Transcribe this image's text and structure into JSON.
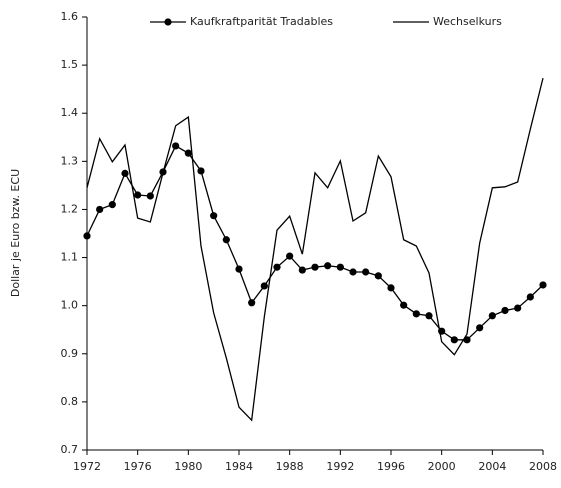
{
  "chart_data": {
    "type": "line",
    "ylabel": "Dollar je Euro bzw. ECU",
    "x": [
      1972,
      1973,
      1974,
      1975,
      1976,
      1977,
      1978,
      1979,
      1980,
      1981,
      1982,
      1983,
      1984,
      1985,
      1986,
      1987,
      1988,
      1989,
      1990,
      1991,
      1992,
      1993,
      1994,
      1995,
      1996,
      1997,
      1998,
      1999,
      2000,
      2001,
      2002,
      2003,
      2004,
      2005,
      2006,
      2007,
      2008
    ],
    "series": [
      {
        "name": "Kaufkraftparität Tradables",
        "color": "#000000",
        "marker": "circle",
        "values": [
          1.145,
          1.2,
          1.21,
          1.275,
          1.23,
          1.228,
          1.278,
          1.332,
          1.317,
          1.28,
          1.187,
          1.137,
          1.076,
          1.006,
          1.041,
          1.08,
          1.103,
          1.074,
          1.08,
          1.083,
          1.08,
          1.07,
          1.07,
          1.062,
          1.037,
          1.001,
          0.983,
          0.979,
          0.947,
          0.929,
          0.929,
          0.954,
          0.979,
          0.99,
          0.995,
          1.018,
          1.043
        ]
      },
      {
        "name": "Wechselkurs",
        "color": "#000000",
        "values": [
          1.245,
          1.347,
          1.299,
          1.334,
          1.182,
          1.174,
          1.276,
          1.374,
          1.392,
          1.124,
          0.985,
          0.891,
          0.789,
          0.762,
          0.977,
          1.157,
          1.186,
          1.107,
          1.276,
          1.245,
          1.301,
          1.176,
          1.193,
          1.311,
          1.268,
          1.137,
          1.124,
          1.068,
          0.925,
          0.898,
          0.941,
          1.13,
          1.245,
          1.247,
          1.257,
          1.367,
          1.473
        ]
      }
    ],
    "xlim": [
      1972,
      2008
    ],
    "xticks": [
      1972,
      1976,
      1980,
      1984,
      1988,
      1992,
      1996,
      2000,
      2004,
      2008
    ],
    "ylim": [
      0.7,
      1.6
    ],
    "yticks": [
      0.7,
      0.8,
      0.9,
      {
        "value": 1,
        "label": "1.0"
      },
      1.1,
      1.2,
      1.3,
      1.4,
      1.5,
      1.6
    ],
    "grid": false,
    "legend": "top"
  }
}
